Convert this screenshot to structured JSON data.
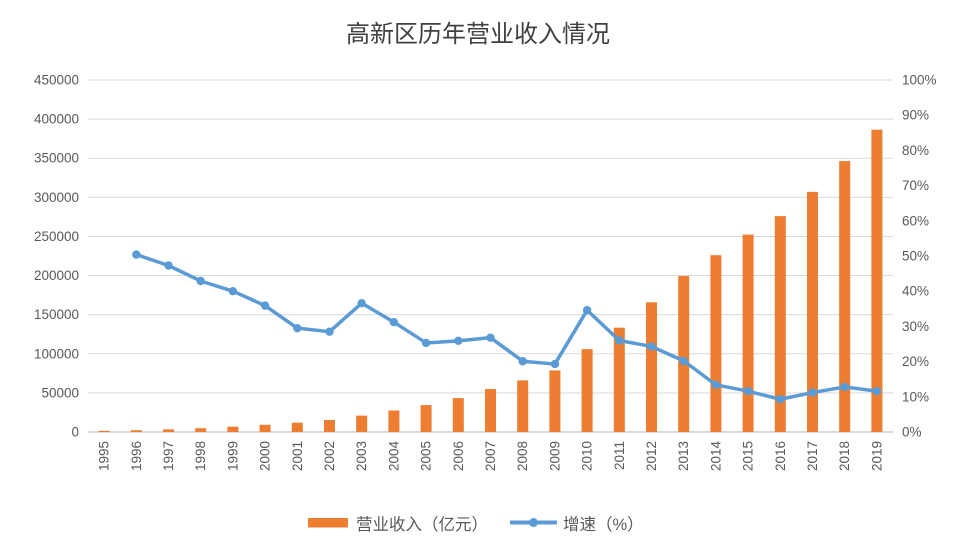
{
  "title": "高新区历年营业收入情况",
  "colors": {
    "bar": "#ED7D31",
    "line": "#5B9BD5",
    "grid": "#D9D9D9",
    "axis_text": "#595959",
    "title_text": "#404040",
    "background": "#FFFFFF"
  },
  "legend": {
    "revenue_label": "营业收入（亿元）",
    "growth_label": "增速（%）"
  },
  "chart_data": {
    "type": "bar+line combo",
    "title": "高新区历年营业收入情况",
    "categories": [
      "1995",
      "1996",
      "1997",
      "1998",
      "1999",
      "2000",
      "2001",
      "2002",
      "2003",
      "2004",
      "2005",
      "2006",
      "2007",
      "2008",
      "2009",
      "2010",
      "2011",
      "2012",
      "2013",
      "2014",
      "2015",
      "2016",
      "2017",
      "2018",
      "2019"
    ],
    "series": [
      {
        "name": "营业收入（亿元）",
        "type": "bar",
        "axis": "left",
        "values": [
          1529,
          2300,
          3388,
          4840,
          6775,
          9209,
          11928,
          15326,
          20939,
          27463,
          34416,
          43320,
          54926,
          65986,
          78707,
          105917,
          133414,
          165810,
          199341,
          226021,
          252325,
          276000,
          307000,
          346400,
          386500
        ]
      },
      {
        "name": "增速（%）",
        "type": "line",
        "axis": "right",
        "values": [
          null,
          50.4,
          47.3,
          42.9,
          40.0,
          35.9,
          29.5,
          28.5,
          36.6,
          31.2,
          25.3,
          25.9,
          26.8,
          20.1,
          19.3,
          34.6,
          26.0,
          24.3,
          20.2,
          13.4,
          11.6,
          9.3,
          11.2,
          12.8,
          11.6
        ]
      }
    ],
    "left_axis": {
      "min": 0,
      "max": 450000,
      "step": 50000,
      "ticks": [
        "0",
        "50000",
        "100000",
        "150000",
        "200000",
        "250000",
        "300000",
        "350000",
        "400000",
        "450000"
      ]
    },
    "right_axis": {
      "min": 0,
      "max": 100,
      "step": 10,
      "ticks": [
        "0%",
        "10%",
        "20%",
        "30%",
        "40%",
        "50%",
        "60%",
        "70%",
        "80%",
        "90%",
        "100%"
      ]
    },
    "grid": "horizontal gridlines only, light gray",
    "legend_position": "bottom center",
    "x_label_rotation": -90
  }
}
